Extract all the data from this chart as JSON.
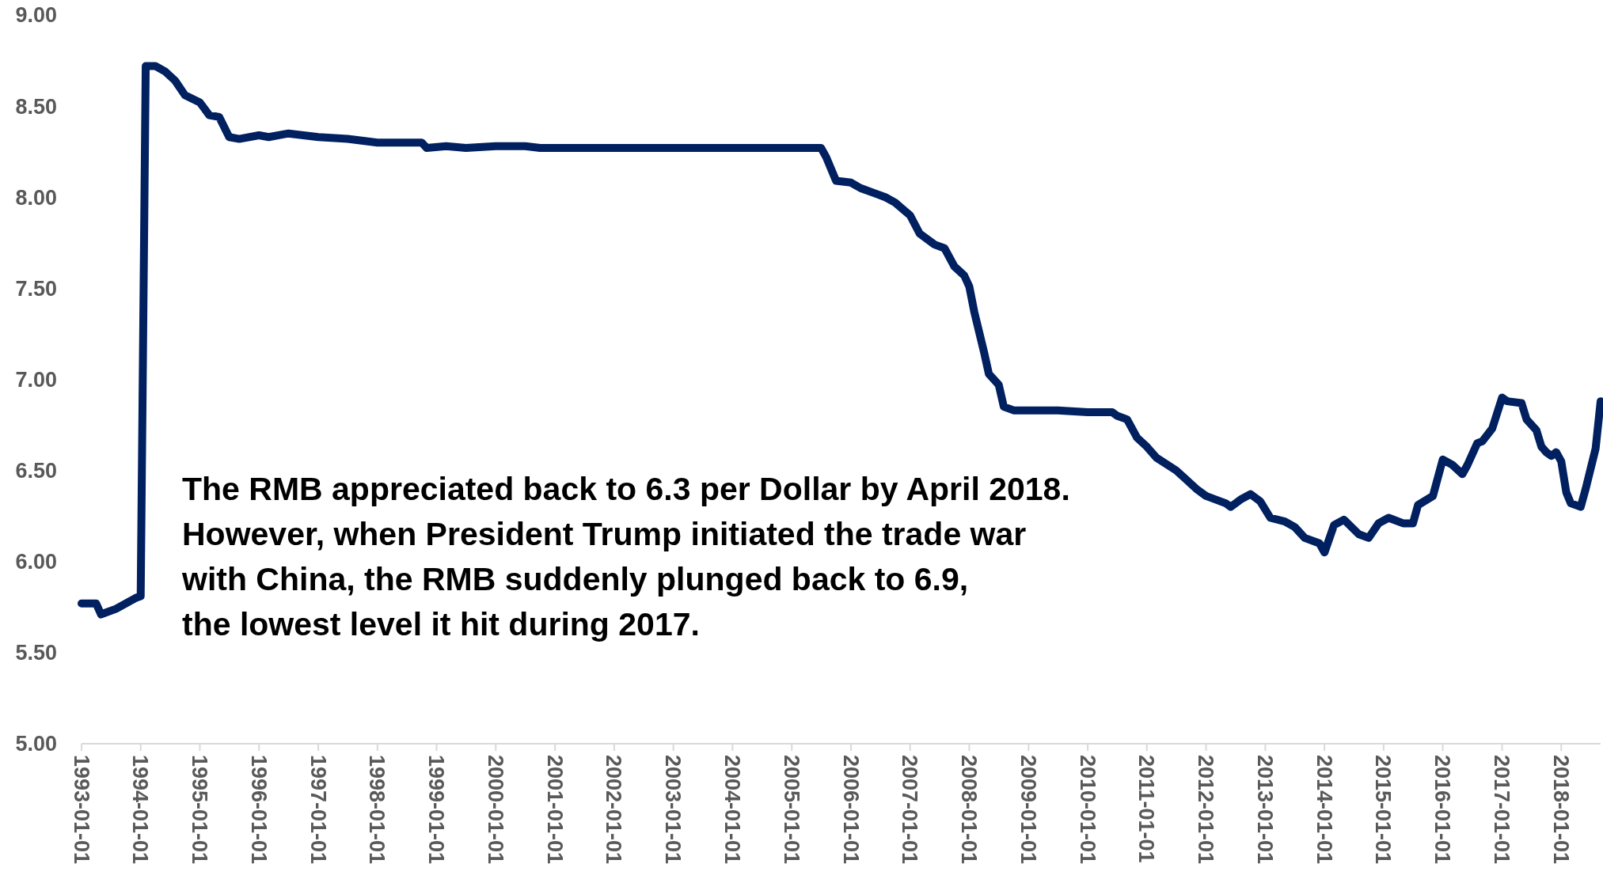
{
  "chart_data": {
    "type": "line",
    "annotations": [
      "The RMB appreciated back to 6.3 per Dollar by April 2018.\nHowever, when President Trump initiated the trade war\nwith China, the RMB suddenly plunged back to 6.9,\nthe lowest level it hit during 2017."
    ],
    "x": [
      "1993-01",
      "1993-04",
      "1993-05",
      "1993-08",
      "1993-12",
      "1994-01",
      "1994-02",
      "1994-04",
      "1994-06",
      "1994-08",
      "1994-10",
      "1995-01",
      "1995-03",
      "1995-05",
      "1995-07",
      "1995-09",
      "1996-01",
      "1996-03",
      "1996-07",
      "1996-10",
      "1997-01",
      "1997-07",
      "1998-01",
      "1998-07",
      "1998-10",
      "1998-11",
      "1999-03",
      "1999-07",
      "2000-01",
      "2000-07",
      "2000-10",
      "2005-07",
      "2005-08",
      "2005-10",
      "2006-01",
      "2006-03",
      "2006-06",
      "2006-08",
      "2006-10",
      "2007-01",
      "2007-03",
      "2007-06",
      "2007-08",
      "2007-10",
      "2007-12",
      "2008-01",
      "2008-02",
      "2008-04",
      "2008-05",
      "2008-07",
      "2008-08",
      "2008-10",
      "2009-01",
      "2009-07",
      "2010-01",
      "2010-06",
      "2010-07",
      "2010-09",
      "2010-11",
      "2011-01",
      "2011-03",
      "2011-07",
      "2011-09",
      "2011-11",
      "2012-01",
      "2012-05",
      "2012-06",
      "2012-08",
      "2012-10",
      "2012-12",
      "2013-02",
      "2013-05",
      "2013-07",
      "2013-09",
      "2013-12",
      "2014-01",
      "2014-03",
      "2014-05",
      "2014-08",
      "2014-10",
      "2014-12",
      "2015-02",
      "2015-05",
      "2015-07",
      "2015-08",
      "2015-11",
      "2016-01",
      "2016-03",
      "2016-05",
      "2016-06",
      "2016-08",
      "2016-09",
      "2016-11",
      "2017-01",
      "2017-02",
      "2017-05",
      "2017-06",
      "2017-08",
      "2017-09",
      "2017-10",
      "2017-11",
      "2017-12",
      "2018-01",
      "2018-02",
      "2018-03",
      "2018-05",
      "2018-06",
      "2018-08",
      "2018-09"
    ],
    "series": [
      {
        "color": "#002060",
        "values": [
          5.77,
          5.77,
          5.71,
          5.74,
          5.8,
          5.81,
          8.72,
          8.72,
          8.69,
          8.64,
          8.56,
          8.52,
          8.45,
          8.44,
          8.33,
          8.32,
          8.34,
          8.33,
          8.35,
          8.34,
          8.33,
          8.32,
          8.3,
          8.3,
          8.3,
          8.27,
          8.28,
          8.27,
          8.28,
          8.28,
          8.27,
          8.27,
          8.22,
          8.09,
          8.08,
          8.05,
          8.02,
          8.0,
          7.97,
          7.9,
          7.8,
          7.74,
          7.72,
          7.62,
          7.57,
          7.51,
          7.37,
          7.15,
          7.03,
          6.97,
          6.85,
          6.83,
          6.83,
          6.83,
          6.82,
          6.82,
          6.8,
          6.78,
          6.68,
          6.63,
          6.57,
          6.5,
          6.45,
          6.4,
          6.36,
          6.32,
          6.3,
          6.34,
          6.37,
          6.33,
          6.24,
          6.22,
          6.19,
          6.13,
          6.1,
          6.05,
          6.2,
          6.23,
          6.15,
          6.13,
          6.21,
          6.24,
          6.21,
          6.21,
          6.31,
          6.36,
          6.56,
          6.53,
          6.48,
          6.53,
          6.65,
          6.66,
          6.73,
          6.9,
          6.88,
          6.87,
          6.78,
          6.72,
          6.63,
          6.6,
          6.58,
          6.6,
          6.55,
          6.38,
          6.32,
          6.3,
          6.4,
          6.62,
          6.88
        ]
      }
    ],
    "ylim": [
      5,
      9
    ],
    "yticks": [
      {
        "value": 5,
        "label": "5.00"
      },
      {
        "value": 5.5,
        "label": "5.50"
      },
      {
        "value": 6,
        "label": "6.00"
      },
      {
        "value": 6.5,
        "label": "6.50"
      },
      {
        "value": 7,
        "label": "7.00"
      },
      {
        "value": 7.5,
        "label": "7.50"
      },
      {
        "value": 8,
        "label": "8.00"
      },
      {
        "value": 8.5,
        "label": "8.50"
      },
      {
        "value": 9,
        "label": "9.00"
      }
    ],
    "xlim": [
      "1993-01",
      "2018-09"
    ],
    "xticks": [
      "1993-01-01",
      "1994-01-01",
      "1995-01-01",
      "1996-01-01",
      "1997-01-01",
      "1998-01-01",
      "1999-01-01",
      "2000-01-01",
      "2001-01-01",
      "2002-01-01",
      "2003-01-01",
      "2004-01-01",
      "2005-01-01",
      "2006-01-01",
      "2007-01-01",
      "2008-01-01",
      "2009-01-01",
      "2010-01-01",
      "2011-01-01",
      "2012-01-01",
      "2013-01-01",
      "2014-01-01",
      "2015-01-01",
      "2016-01-01",
      "2017-01-01",
      "2018-01-01"
    ],
    "marker": "none",
    "line_style": "solid"
  }
}
